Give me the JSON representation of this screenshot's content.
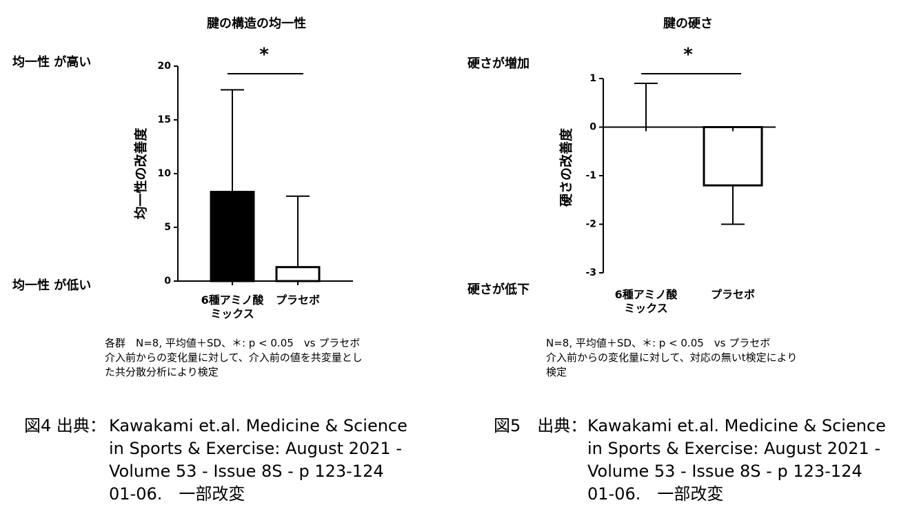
{
  "chart_data": [
    {
      "type": "bar",
      "title": "腱の構造の均一性",
      "ylabel": "均一性の改善度",
      "categories": [
        "6種アミノ酸\nミックス",
        "プラセボ"
      ],
      "values": [
        8.3,
        1.3
      ],
      "errors": [
        9.5,
        6.6
      ],
      "colors": [
        "#000000",
        "#ffffff"
      ],
      "ylim": [
        0,
        20
      ],
      "yticks": [
        0,
        5,
        10,
        15,
        20
      ],
      "annotation": "*",
      "upper_label": "均一性 が高い",
      "lower_label": "均一性 が低い",
      "notes": [
        "各群　N=8, 平均値＋SD、＊: p < 0.05　vs プラセボ",
        "介入前からの変化量に対して、介入前の値を共変量とし",
        "た共分散分析により検定"
      ],
      "caption_label": "図4 出典：",
      "caption_lines": [
        "Kawakami et.al. Medicine & Science",
        "in Sports & Exercise: August 2021 -",
        "Volume 53 - Issue 8S - p 123-124",
        "01-06.　一部改変"
      ]
    },
    {
      "type": "bar",
      "title": "腱の硬さ",
      "ylabel": "硬さの改善度",
      "categories": [
        "6種アミノ酸\nミックス",
        "プラセボ"
      ],
      "values": [
        0,
        -1.2
      ],
      "errors": [
        0.9,
        0.8
      ],
      "colors": [
        "#ffffff",
        "#ffffff"
      ],
      "ylim": [
        -3,
        1
      ],
      "yticks": [
        -3,
        -2,
        -1,
        0,
        1
      ],
      "annotation": "*",
      "upper_label": "硬さが増加",
      "lower_label": "硬さが低下",
      "notes": [
        "N=8, 平均値＋SD、＊: p < 0.05　vs プラセボ",
        "介入前からの変化量に対して、対応の無いt検定により",
        "検定"
      ],
      "caption_label": "図5　出典：",
      "caption_lines": [
        "Kawakami et.al. Medicine & Science",
        "in Sports & Exercise: August 2021 -",
        "Volume 53 - Issue 8S - p 123-124",
        "01-06.　一部改変"
      ]
    }
  ]
}
